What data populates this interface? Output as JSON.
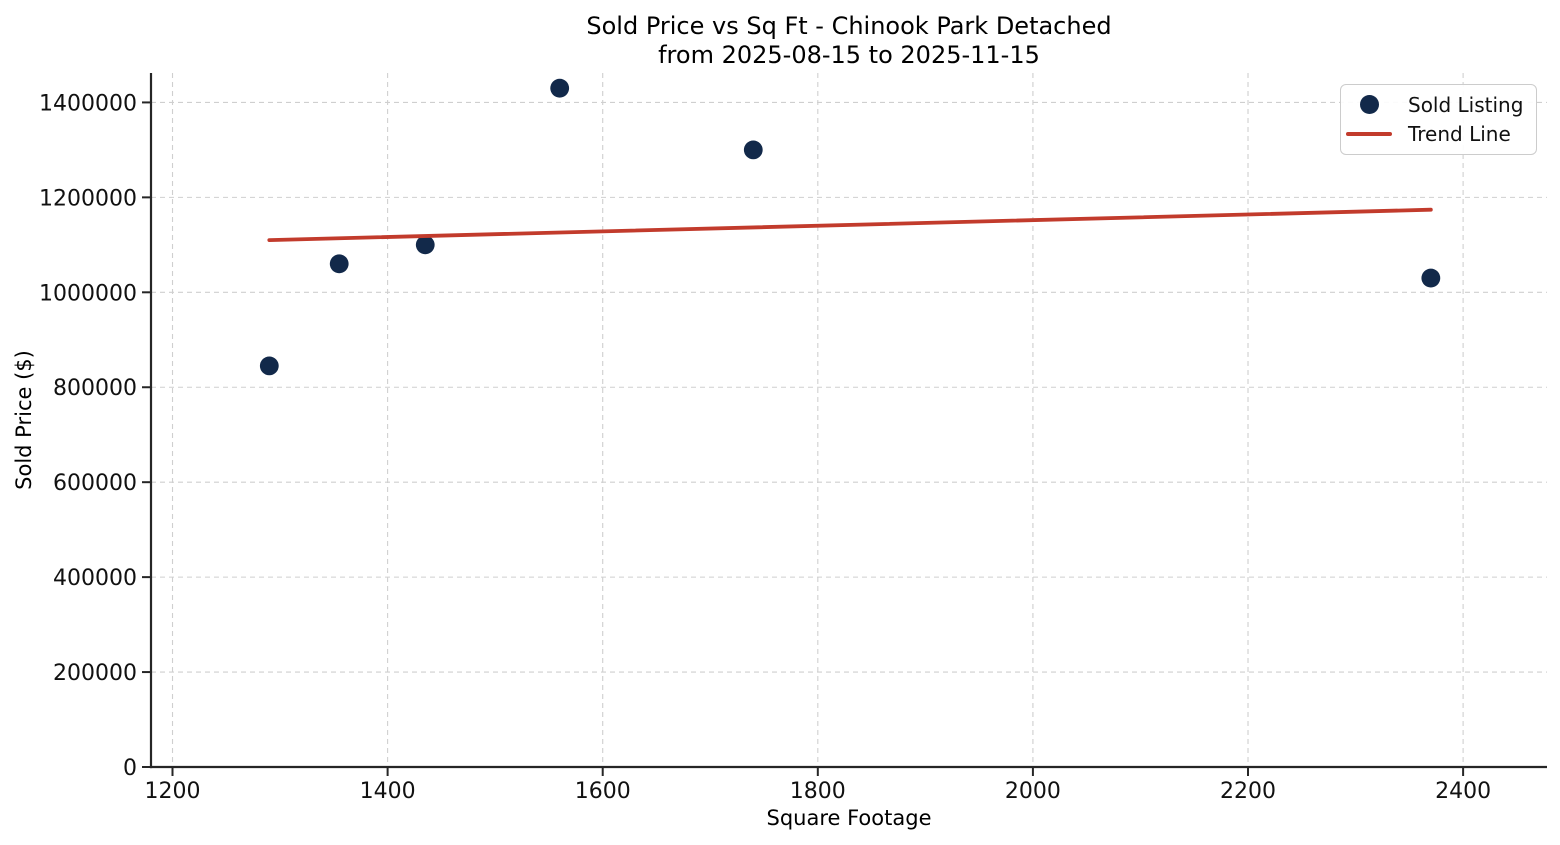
{
  "chart_data": {
    "type": "scatter",
    "title": "Sold Price vs Sq Ft - Chinook Park Detached",
    "subtitle": "from 2025-08-15 to 2025-11-15",
    "xlabel": "Square Footage",
    "ylabel": "Sold Price ($)",
    "xlim": [
      1180,
      2478
    ],
    "ylim": [
      0,
      1462000
    ],
    "x_ticks": [
      1200,
      1400,
      1600,
      1800,
      2000,
      2200,
      2400
    ],
    "y_ticks": [
      0,
      200000,
      400000,
      600000,
      800000,
      1000000,
      1200000,
      1400000
    ],
    "grid": true,
    "grid_style": "dashed",
    "legend_position": "upper right",
    "series": [
      {
        "name": "Sold Listing",
        "type": "scatter",
        "color": "#12294A",
        "points": [
          [
            1290,
            845000
          ],
          [
            1355,
            1060000
          ],
          [
            1435,
            1100000
          ],
          [
            1560,
            1430000
          ],
          [
            1740,
            1300000
          ],
          [
            2370,
            1030000
          ]
        ]
      },
      {
        "name": "Trend Line",
        "type": "line",
        "color": "#C23B2C",
        "points": [
          [
            1290,
            1110000
          ],
          [
            2370,
            1174000
          ]
        ]
      }
    ],
    "colors": {
      "marker": "#12294A",
      "trend": "#C23B2C",
      "grid": "#CFCFCF",
      "spine": "#262626",
      "tick_text": "#111111",
      "legend_border": "#CCCCCC"
    }
  }
}
